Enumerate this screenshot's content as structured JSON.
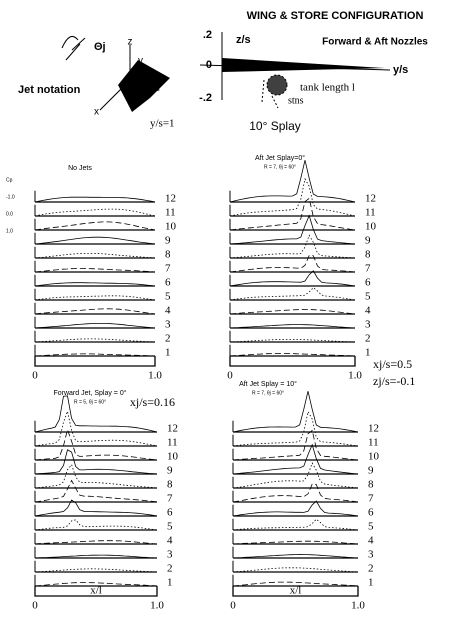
{
  "header": {
    "title": "WING & STORE CONFIGURATION",
    "subtitle": "Forward & Aft Nozzles",
    "z_axis": "z/s",
    "z_ticks": [
      ".2",
      "0",
      "-.2"
    ],
    "y_axis": "y/s",
    "tank": "tank length l",
    "stations": "stns",
    "splay": "10° Splay"
  },
  "notation": {
    "title": "Jet notation",
    "theta": "Θj",
    "z": "z",
    "y": "y",
    "x": "x",
    "span": "y/s=1"
  },
  "panels": [
    {
      "title": "No Jets",
      "y_axis": [
        "Cp",
        "-1.0",
        "0.0",
        "1.0"
      ],
      "stations": [
        "12",
        "11",
        "10",
        "9",
        "8",
        "7",
        "6",
        "5",
        "4",
        "3",
        "2",
        "1"
      ],
      "x_axis": [
        "0",
        "1.0"
      ]
    },
    {
      "title": "Aft Jet Splay=0°",
      "params": "R = 7, θj = 60°",
      "stations": [
        "12",
        "11",
        "10",
        "9",
        "8",
        "7",
        "6",
        "5",
        "4",
        "3",
        "2",
        "1"
      ],
      "x_axis": [
        "0",
        "1.0"
      ]
    },
    {
      "title": "Forward Jet, Splay = 0°",
      "params": "R = 5, θj = 60°",
      "note": "xj/s=0.16",
      "stations": [
        "12",
        "11",
        "10",
        "9",
        "8",
        "7",
        "6",
        "5",
        "4",
        "3",
        "2",
        "1"
      ],
      "x_label": "x/l",
      "x_axis": [
        "0",
        "1.0"
      ]
    },
    {
      "title": "Aft Jet Splay = 10°",
      "params": "R = 7, θj = 60°",
      "note": "xj/s=0.5",
      "note2": "zj/s=-0.1",
      "stations": [
        "12",
        "11",
        "10",
        "9",
        "8",
        "7",
        "6",
        "5",
        "4",
        "3",
        "2",
        "1"
      ],
      "x_label": "x/l",
      "x_axis": [
        "0",
        "1.0"
      ]
    }
  ]
}
